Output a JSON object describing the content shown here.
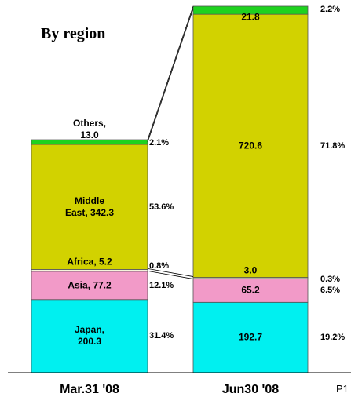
{
  "chart_data": {
    "type": "stacked_bar",
    "title": "By region",
    "categories": [
      "Mar.31 '08",
      "Jun30 '08"
    ],
    "series": [
      {
        "color": "#00f0f0",
        "values": [
          200.3,
          192.7
        ],
        "value_labels": [
          "Japan, 200.3",
          "192.7"
        ],
        "shares": [
          31.4,
          19.2
        ],
        "share_labels": [
          "31.4%",
          "19.2%"
        ]
      },
      {
        "color": "#f29ac8",
        "values": [
          77.2,
          65.2
        ],
        "value_labels": [
          "Asia, 77.2",
          "65.2"
        ],
        "shares": [
          12.1,
          6.5
        ],
        "share_labels": [
          "12.1%",
          "6.5%"
        ]
      },
      {
        "color": "#f4f4dc",
        "values": [
          5.2,
          3.0
        ],
        "value_labels": [
          "Africa, 5.2",
          "3.0"
        ],
        "shares": [
          0.8,
          0.3
        ],
        "share_labels": [
          "0.8%",
          "0.3%"
        ]
      },
      {
        "color": "#d2d200",
        "values": [
          342.3,
          720.6
        ],
        "value_labels": [
          "Middle East, 342.3",
          "720.6"
        ],
        "shares": [
          53.6,
          71.8
        ],
        "share_labels": [
          "53.6%",
          "71.8%"
        ]
      },
      {
        "color": "#1ed21e",
        "values": [
          13.0,
          21.8
        ],
        "value_labels": [
          "Others, 13.0",
          "21.8"
        ],
        "shares": [
          2.1,
          2.2
        ],
        "share_labels": [
          "2.1%",
          "2.2%"
        ]
      }
    ]
  },
  "page": "P1"
}
